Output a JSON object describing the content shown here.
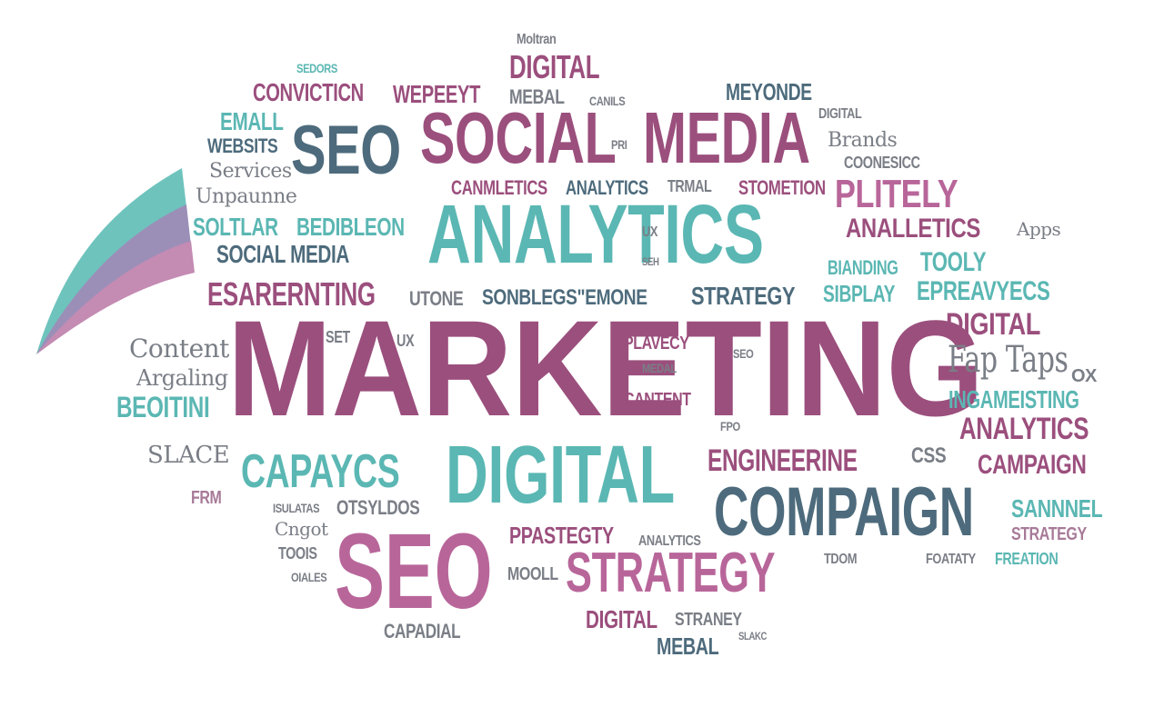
{
  "words": {
    "marketing": "MARKETING",
    "analytics_big": "ANALYTICS",
    "social": "SOCIAL",
    "media": "MEDIA",
    "seo_top": "SEO",
    "seo_bottom": "SEO",
    "digital_big": "DIGITAL",
    "compaign": "COMPAIGN",
    "strategy_big": "STRATEGY",
    "capaycs": "CAPAYCS",
    "engineerine": "ENGINEERINE",
    "plitely": "PLITELY",
    "analletics": "ANALLETICS",
    "digital_right": "DIGITAL",
    "analytics_right": "ANALYTICS",
    "campaign": "CAMPAIGN",
    "ingameisting": "INGAMEISTING",
    "sannnel": "SANNNEL",
    "strategy_right": "STRATEGY",
    "fap_taps": "Fap Taps",
    "epreavyecs": "EPREAVYECS",
    "sbplay": "SIBPLAY",
    "bianding": "BIANDING",
    "tooly": "TOOLY",
    "strategy_mid": "STRATEGY",
    "sonblegs": "SONBLEGS\"EMONE",
    "utone": "UTONE",
    "esarernting": "ESARERNTING",
    "social_media_small": "SOCIAL MEDIA",
    "soltlar": "SOLTLAR",
    "bedibleon": "BEDIBLEON",
    "unpaunne": "Unpaunne",
    "services": "Services",
    "websits": "WEBSITS",
    "email": "EMALL",
    "convicticn": "CONVICTICN",
    "wepeeyt": "WEPEEYT",
    "digital_top": "DIGITAL",
    "meyonde": "MEYONDE",
    "canmletics": "CANMLETICS",
    "analytics_small": "ANALYTICS",
    "trmal": "TRMAL",
    "stometion": "STOMETION",
    "brands": "Brands",
    "coonesicc": "COONESICC",
    "apps": "Apps",
    "content": "Content",
    "argaling": "Argaling",
    "beoitini": "BEOITINI",
    "slace": "SLACE",
    "frm": "FRM",
    "cantent": "CANTENT",
    "plavecy": "PLAVECY",
    "medal": "MEDAL",
    "ppastegty": "PPASTEGTY",
    "analytics_bottom": "ANALYTICS",
    "digital_bottom": "DIGITAL",
    "straney": "STRANEY",
    "mebal": "MEBAL",
    "capadial": "CAPADIAL",
    "otsyldos": "OTSYLDOS",
    "isulatas": "ISULATAS",
    "tools": "TOOIS",
    "mooll": "MOOLL",
    "foatatty": "FOATATY",
    "freation": "FREATION",
    "css": "CSS",
    "ux_a": "UX",
    "ux_b": "UX",
    "ox": "OX",
    "motran": "Moltran",
    "sedors": "SEDORS",
    "mebal_top": "MEBAL",
    "canils": "CANILS",
    "pri": "PRI",
    "digital_tiny": "DIGITAL",
    "seh": "SEH",
    "set": "SET",
    "seo_small": "SEO",
    "fpo": "FPO",
    "cngot": "Cngot",
    "slakc": "SLAKC",
    "oiales": "OIALES",
    "tdom": "TDOM"
  },
  "colors": {
    "plum": "#9b4f7d",
    "rose": "#b8669a",
    "teal": "#5bb7b3",
    "slate": "#4d6b7c",
    "grey": "#7a7e86"
  }
}
